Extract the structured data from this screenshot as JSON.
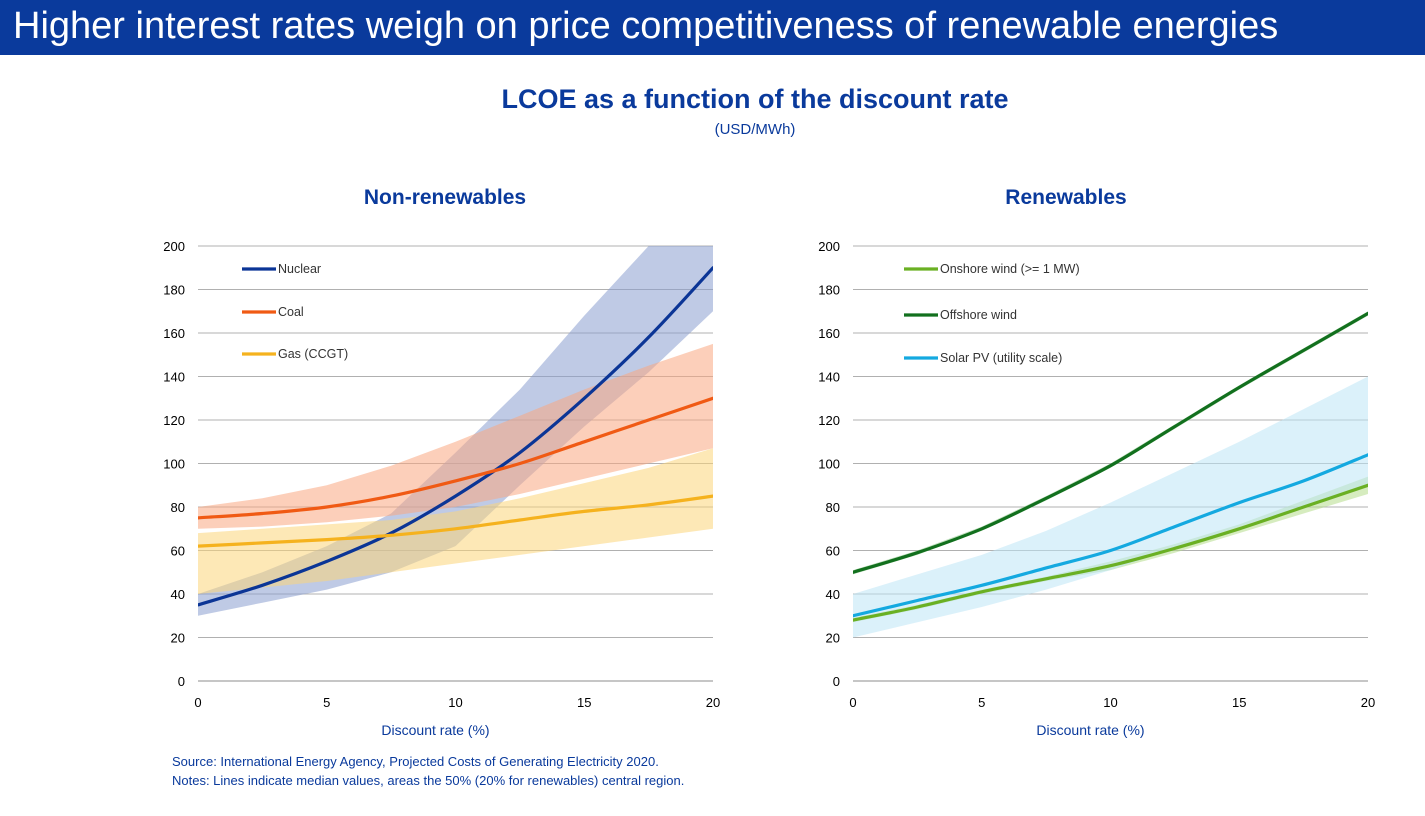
{
  "slide_title": "Higher interest rates weigh on price competitiveness of renewable energies",
  "figure_title": "LCOE as a function of the discount rate",
  "figure_subtitle": "(USD/MWh)",
  "footnotes": {
    "source": "Source: International Energy Agency, Projected Costs of Generating Electricity 2020.",
    "notes": "Notes: Lines indicate median values, areas the 50% (20% for renewables) central region."
  },
  "colors": {
    "banner": "#0a3a9c",
    "text_blue": "#0a3a9c",
    "grid": "#b0b0b0"
  },
  "chart_data": [
    {
      "type": "line",
      "title": "Non-renewables",
      "xlabel": "Discount rate (%)",
      "ylabel": "",
      "xlim": [
        0,
        20
      ],
      "ylim": [
        0,
        200
      ],
      "xticks": [
        0,
        5,
        10,
        15,
        20
      ],
      "yticks": [
        0,
        20,
        40,
        60,
        80,
        100,
        120,
        140,
        160,
        180,
        200
      ],
      "grid": "horizontal",
      "legend_position": "top-left",
      "x": [
        0,
        2.5,
        5,
        7.5,
        10,
        12.5,
        15,
        17.5,
        20
      ],
      "series": [
        {
          "name": "Nuclear",
          "color": "#0b3596",
          "band_color": "#8a9fd0",
          "values": [
            35,
            44,
            55,
            68,
            85,
            105,
            130,
            158,
            190
          ],
          "band_low": [
            30,
            36,
            42,
            50,
            62,
            90,
            117,
            142,
            170
          ],
          "band_high": [
            40,
            50,
            62,
            77,
            105,
            134,
            168,
            200,
            200
          ]
        },
        {
          "name": "Coal",
          "color": "#f05a14",
          "band_color": "#f9a882",
          "values": [
            75,
            77,
            80,
            85,
            92,
            100,
            110,
            120,
            130
          ],
          "band_low": [
            70,
            71,
            73,
            76,
            80,
            86,
            93,
            100,
            107
          ],
          "band_high": [
            80,
            84,
            90,
            99,
            110,
            122,
            134,
            145,
            155
          ]
        },
        {
          "name": "Gas (CCGT)",
          "color": "#f5b21e",
          "band_color": "#fcd67a",
          "values": [
            62,
            63.5,
            65,
            67,
            70,
            74,
            78,
            81,
            85
          ],
          "band_low": [
            40,
            43,
            46,
            50,
            54,
            58,
            62,
            66,
            70
          ],
          "band_high": [
            68,
            70,
            72,
            74,
            78,
            84,
            91,
            98,
            107
          ]
        }
      ]
    },
    {
      "type": "line",
      "title": "Renewables",
      "xlabel": "Discount rate (%)",
      "ylabel": "",
      "xlim": [
        0,
        20
      ],
      "ylim": [
        0,
        200
      ],
      "xticks": [
        0,
        5,
        10,
        15,
        20
      ],
      "yticks": [
        0,
        20,
        40,
        60,
        80,
        100,
        120,
        140,
        160,
        180,
        200
      ],
      "grid": "horizontal",
      "legend_position": "top-left",
      "x": [
        0,
        2.5,
        5,
        7.5,
        10,
        12.5,
        15,
        17.5,
        20
      ],
      "series": [
        {
          "name": "Onshore wind (>= 1 MW)",
          "color": "#6ab023",
          "band_color": "#b5dd8a",
          "values": [
            28,
            34,
            41,
            47,
            53,
            61,
            70,
            80,
            90
          ],
          "band_low": [
            27,
            33,
            40,
            46,
            51,
            59,
            68,
            77,
            86
          ],
          "band_high": [
            29,
            35,
            42,
            48,
            55,
            63,
            72,
            83,
            94
          ]
        },
        {
          "name": "Offshore wind",
          "color": "#12701e",
          "band_color": "#8fc98a",
          "values": [
            50,
            59,
            70,
            84,
            99,
            117,
            135,
            152,
            169
          ],
          "band_low": [
            49,
            58,
            69,
            83,
            98,
            116,
            134,
            151,
            168
          ],
          "band_high": [
            51,
            60,
            71,
            85,
            100,
            118,
            136,
            153,
            170
          ]
        },
        {
          "name": "Solar PV (utility scale)",
          "color": "#14a9e0",
          "band_color": "#bde5f6",
          "values": [
            30,
            37,
            44,
            52,
            60,
            71,
            82,
            92,
            104
          ],
          "band_low": [
            20,
            27,
            34,
            42,
            51,
            61,
            71,
            80,
            90
          ],
          "band_high": [
            40,
            49,
            58,
            69,
            82,
            96,
            110,
            125,
            140
          ]
        }
      ]
    }
  ]
}
